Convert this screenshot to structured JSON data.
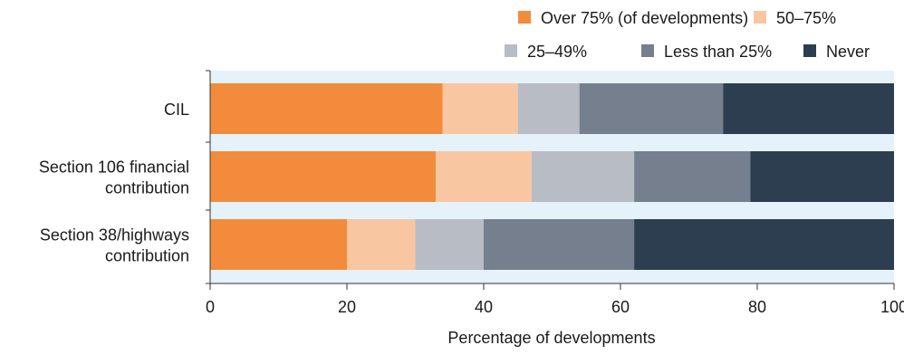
{
  "chart_data": {
    "type": "bar",
    "orientation": "horizontal",
    "stacked": true,
    "xlabel": "Percentage of developments",
    "xlim": [
      0,
      100
    ],
    "xticks": [
      0,
      20,
      40,
      60,
      80,
      100
    ],
    "grid": false,
    "legend_position": "top-right",
    "categories": [
      [
        "CIL"
      ],
      [
        "Section 106 financial",
        "contribution"
      ],
      [
        "Section 38/highways",
        "contribution"
      ]
    ],
    "series": [
      {
        "name": "Over 75% (of developments)",
        "color": "#F28C3C",
        "values": [
          34,
          33,
          20
        ]
      },
      {
        "name": "50–75%",
        "color": "#F8C6A0",
        "values": [
          11,
          14,
          10
        ]
      },
      {
        "name": "25–49%",
        "color": "#B8BCC5",
        "values": [
          9,
          15,
          10
        ]
      },
      {
        "name": "Less than 25%",
        "color": "#757F8E",
        "values": [
          21,
          17,
          22
        ]
      },
      {
        "name": "Never",
        "color": "#2C3E50",
        "values": [
          25,
          21,
          38
        ]
      }
    ],
    "plot_background": "#E6F2FA"
  }
}
